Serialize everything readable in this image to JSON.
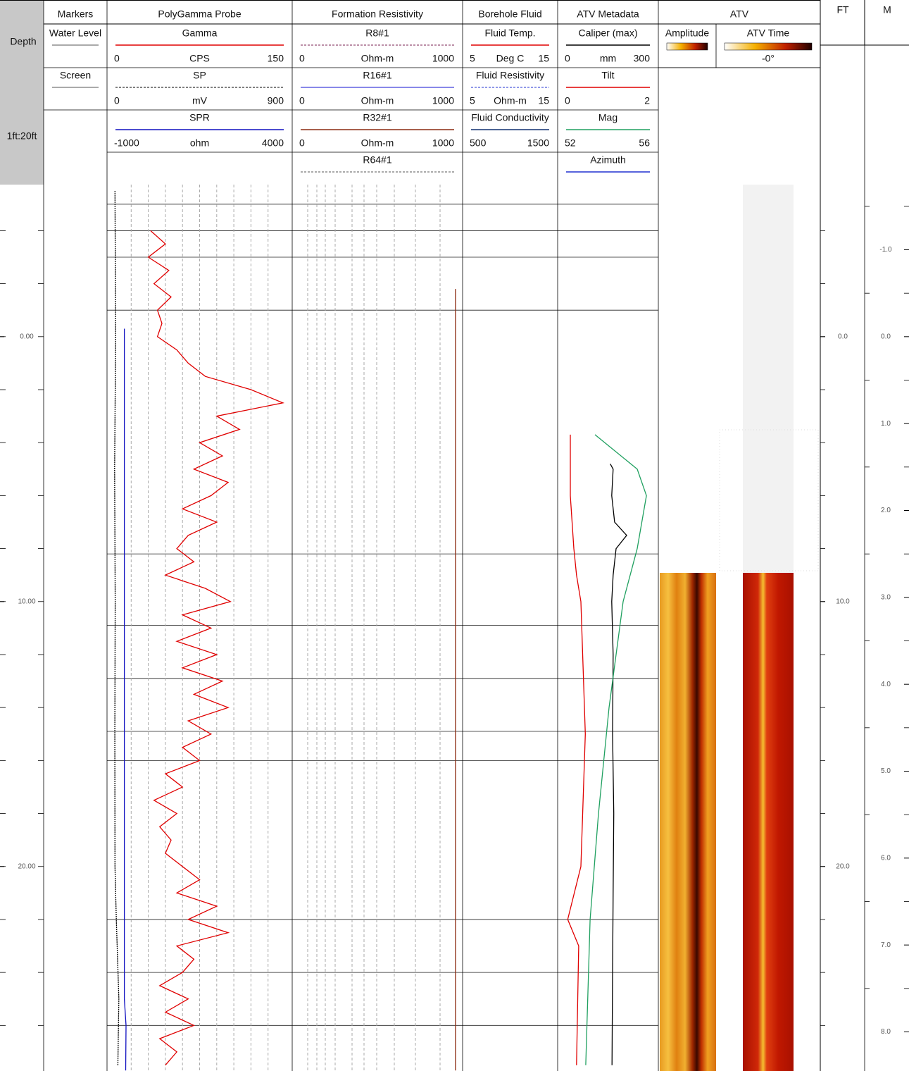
{
  "chart_data": {
    "type": "well-log",
    "depth_title": "Depth",
    "scale_label": "1ft:20ft",
    "ylim": [
      -5.74,
      27.72
    ],
    "yticks": [
      {
        "value": 0,
        "label": "0.00"
      },
      {
        "value": 10,
        "label": "10.00"
      },
      {
        "value": 20,
        "label": "20.00"
      }
    ],
    "ft_title": "FT",
    "ft_ticks": [
      {
        "value": 0,
        "label": "0.0"
      },
      {
        "value": 10,
        "label": "10.0"
      },
      {
        "value": 20,
        "label": "20.0"
      }
    ],
    "m_title": "M",
    "y2lim": [
      -1.75,
      8.45
    ],
    "y2ticks": [
      {
        "value": -1,
        "label": "-1.0"
      },
      {
        "value": 0,
        "label": "0.0"
      },
      {
        "value": 1,
        "label": "1.0"
      },
      {
        "value": 2,
        "label": "2.0"
      },
      {
        "value": 3,
        "label": "3.0"
      },
      {
        "value": 4,
        "label": "4.0"
      },
      {
        "value": 5,
        "label": "5.0"
      },
      {
        "value": 6,
        "label": "6.0"
      },
      {
        "value": 7,
        "label": "7.0"
      },
      {
        "value": 8,
        "label": "8.0"
      }
    ],
    "tracks": [
      {
        "title": "Markers",
        "curves": [
          {
            "name": "Water Level"
          },
          {
            "name": "Screen"
          }
        ]
      },
      {
        "title": "PolyGamma Probe",
        "curves": [
          {
            "name": "Gamma",
            "color": "#e00000",
            "unit": "CPS",
            "xlim": [
              0,
              150
            ],
            "x": [
              -4,
              -3.5,
              -3,
              -2.5,
              -2,
              -1.5,
              -1,
              -0.5,
              0,
              0.5,
              1,
              1.5,
              2,
              2.5,
              3,
              3.5,
              4,
              4.5,
              5,
              5.5,
              6,
              6.5,
              7,
              7.5,
              8,
              8.5,
              9,
              9.5,
              10,
              10.5,
              11,
              11.5,
              12,
              12.5,
              13,
              13.5,
              14,
              14.5,
              15,
              15.5,
              16,
              16.5,
              17,
              17.5,
              18,
              18.5,
              19,
              19.5,
              20,
              20.5,
              21,
              21.5,
              22,
              22.5,
              23,
              23.5,
              24,
              24.5,
              25,
              25.5,
              26,
              26.5,
              27,
              27.5
            ],
            "values": [
              32,
              45,
              30,
              48,
              35,
              50,
              38,
              42,
              38,
              55,
              65,
              80,
              120,
              148,
              90,
              110,
              75,
              95,
              70,
              100,
              85,
              60,
              90,
              65,
              55,
              70,
              45,
              80,
              102,
              60,
              85,
              55,
              90,
              60,
              95,
              70,
              100,
              65,
              85,
              60,
              75,
              45,
              60,
              35,
              55,
              40,
              50,
              45,
              60,
              75,
              55,
              90,
              65,
              100,
              55,
              70,
              60,
              40,
              65,
              45,
              70,
              40,
              55,
              45
            ]
          },
          {
            "name": "SP",
            "color": "#000000",
            "dashed": true,
            "unit": "mV",
            "xlim": [
              0,
              900
            ],
            "x": [
              -5.5,
              0,
              5,
              10,
              15,
              20,
              22,
              25,
              27.5
            ],
            "values": [
              5,
              8,
              3,
              6,
              4,
              5,
              12,
              25,
              20
            ]
          },
          {
            "name": "SPR",
            "color": "#1010c0",
            "unit": "ohm",
            "xlim": [
              -1000,
              4000
            ],
            "x": [
              -0.3,
              25,
              26,
              27.7
            ],
            "values": [
              -700,
              -700,
              -650,
              -660
            ]
          }
        ]
      },
      {
        "title": "Formation Resistivity",
        "curves": [
          {
            "name": "R8#1",
            "color": "#7a2050",
            "dashed": true,
            "unit": "Ohm-m",
            "xlim": [
              0,
              1000
            ]
          },
          {
            "name": "R16#1",
            "color": "#6060e0",
            "unit": "Ohm-m",
            "xlim": [
              0,
              1000
            ]
          },
          {
            "name": "R32#1",
            "color": "#8b2a10",
            "unit": "Ohm-m",
            "xlim": [
              0,
              1000
            ],
            "x": [
              -1.8,
              27.7
            ],
            "values": [
              995,
              995
            ]
          },
          {
            "name": "R64#1",
            "color": "#555555",
            "dashed": true
          }
        ]
      },
      {
        "title": "Borehole Fluid",
        "curves": [
          {
            "name": "Fluid Temp.",
            "color": "#e00000",
            "unit": "Deg C",
            "xlim": [
              5,
              15
            ]
          },
          {
            "name": "Fluid Resistivity",
            "color": "#2030d0",
            "dashed": true,
            "unit": "Ohm-m",
            "xlim": [
              5,
              15
            ]
          },
          {
            "name": "Fluid Conductivity",
            "color": "#103070",
            "xlim": [
              500,
              1500
            ]
          }
        ]
      },
      {
        "title": "ATV Metadata",
        "curves": [
          {
            "name": "Caliper (max)",
            "color": "#000000",
            "unit": "mm",
            "xlim": [
              0,
              300
            ],
            "x": [
              4.8,
              5,
              6,
              7,
              7.5,
              8,
              9,
              10,
              12,
              15,
              18,
              21,
              24,
              27.5
            ],
            "values": [
              160,
              170,
              165,
              175,
              216,
              180,
              170,
              165,
              170,
              168,
              172,
              170,
              168,
              166
            ]
          },
          {
            "name": "Tilt",
            "color": "#e00000",
            "xlim": [
              0,
              2
            ],
            "x": [
              3.7,
              4.5,
              6,
              7,
              8,
              9,
              10,
              15,
              20,
              22,
              23,
              27.5
            ],
            "values": [
              0.16,
              0.16,
              0.16,
              0.2,
              0.24,
              0.3,
              0.4,
              0.5,
              0.4,
              0.1,
              0.35,
              0.3
            ]
          },
          {
            "name": "Mag",
            "color": "#20a060",
            "xlim": [
              52,
              56
            ],
            "x": [
              3.7,
              5,
              6,
              8,
              10,
              14,
              18,
              22,
              27.5
            ],
            "values": [
              53.44,
              55.36,
              55.78,
              55.36,
              54.72,
              54.08,
              53.6,
              53.22,
              53.02
            ]
          },
          {
            "name": "Azimuth",
            "color": "#2030d0"
          }
        ]
      },
      {
        "title": "ATV",
        "images": [
          {
            "name": "Amplitude"
          },
          {
            "name": "ATV Time",
            "label": "-0°"
          }
        ]
      }
    ]
  }
}
